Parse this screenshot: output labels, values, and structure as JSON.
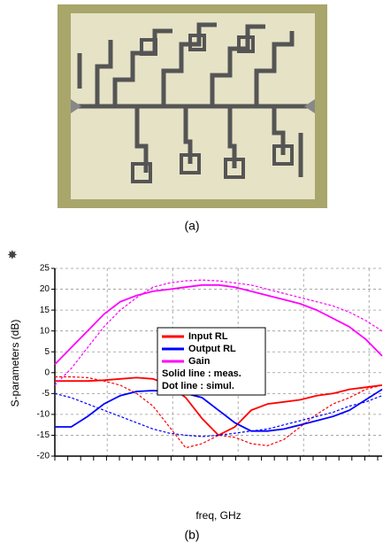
{
  "figure_a": {
    "caption": "(a)"
  },
  "chart_data": {
    "type": "line",
    "caption": "(b)",
    "ylabel": "S-parameters (dB)",
    "xlabel": "freq, GHz",
    "x": [
      0,
      5,
      10,
      15,
      20,
      25,
      30,
      35,
      40,
      45,
      50,
      55,
      60,
      65,
      70,
      75,
      80,
      85,
      90,
      95,
      100
    ],
    "xlim": [
      0,
      100
    ],
    "xticks": [
      16,
      36,
      56,
      76,
      96
    ],
    "ylim": [
      -20,
      25
    ],
    "yticks": [
      -20,
      -15,
      -10,
      -5,
      0,
      5,
      10,
      15,
      20,
      25
    ],
    "grid": true,
    "series": [
      {
        "name": "Input RL",
        "color": "#ff0000",
        "values": [
          -2,
          -2,
          -2,
          -1.8,
          -1.5,
          -1.2,
          -1.5,
          -3,
          -6,
          -11,
          -15,
          -13,
          -9,
          -7.5,
          -7,
          -6.5,
          -5.5,
          -5,
          -4,
          -3.5,
          -3
        ],
        "simulated_values": [
          -1,
          -1,
          -1.2,
          -2,
          -3,
          -5,
          -8,
          -13,
          -18,
          -17,
          -15,
          -15.5,
          -17,
          -17.5,
          -16,
          -13,
          -10,
          -7.5,
          -6,
          -4,
          -3
        ]
      },
      {
        "name": "Output RL",
        "color": "#0000ff",
        "values": [
          -13,
          -13,
          -10.5,
          -7.5,
          -5.5,
          -4.5,
          -4.3,
          -4.5,
          -5,
          -6,
          -9,
          -12,
          -14,
          -14,
          -13.5,
          -12.5,
          -11.5,
          -10.5,
          -9,
          -6.5,
          -4
        ],
        "simulated_values": [
          -5,
          -6,
          -7.5,
          -9,
          -10.5,
          -12,
          -13.5,
          -14.5,
          -15,
          -15.3,
          -15,
          -14.5,
          -14,
          -13.5,
          -12.5,
          -11.5,
          -10.5,
          -9.5,
          -8,
          -7,
          -5.5
        ]
      },
      {
        "name": "Gain",
        "color": "#ff00ff",
        "values": [
          2,
          6,
          10,
          14,
          17,
          18.5,
          19.5,
          20,
          20.5,
          21,
          21,
          20.5,
          19.5,
          18.5,
          17.5,
          16.5,
          15,
          13,
          11,
          8,
          4
        ],
        "simulated_values": [
          -3,
          1,
          6,
          11,
          15,
          18,
          20.5,
          21.5,
          22,
          22.2,
          22,
          21.5,
          21,
          20,
          19,
          18,
          17,
          16,
          14.5,
          12.5,
          10
        ]
      }
    ],
    "notes": [
      "Solid line : meas.",
      "Dot line : simul."
    ]
  }
}
